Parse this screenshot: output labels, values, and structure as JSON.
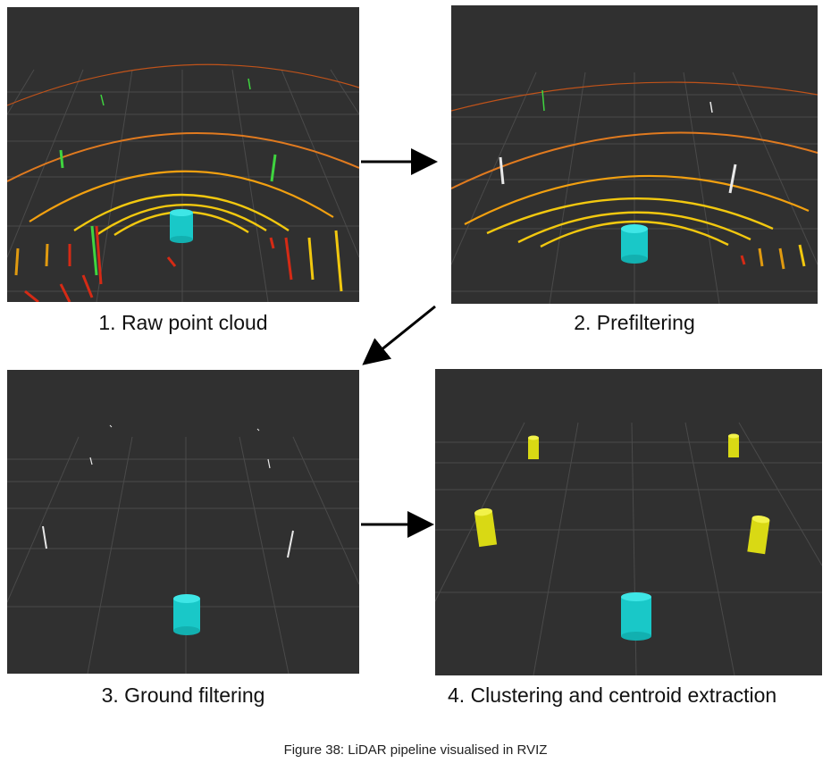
{
  "panels": [
    {
      "id": "raw",
      "caption": "1. Raw point cloud"
    },
    {
      "id": "prefilter",
      "caption": "2. Prefiltering"
    },
    {
      "id": "ground",
      "caption": "3. Ground filtering"
    },
    {
      "id": "cluster",
      "caption": "4. Clustering and centroid extraction"
    }
  ],
  "figure_caption": "Figure 38: LiDAR pipeline visualised in RVIZ",
  "colors": {
    "background": "#303030",
    "grid": "#4a4a4a",
    "cylinder_cyan": "#19d4d4",
    "cylinder_yellow": "#e6e61a",
    "ring_yellow": "#f2c80f",
    "ring_orange": "#e07a1f",
    "points_red": "#d52a15",
    "points_green": "#3fd43f",
    "points_white": "#e8e8e8"
  }
}
